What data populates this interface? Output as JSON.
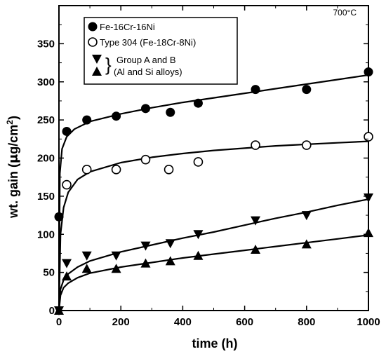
{
  "chart_data": {
    "type": "scatter",
    "annotation": "700°C",
    "xlabel": "time (h)",
    "ylabel_prefix": "wt. gain (",
    "ylabel_mu": "μ",
    "ylabel_unit": "g/cm",
    "ylabel_sup": "2",
    "ylabel_suffix": ")",
    "xlim": [
      0,
      1000
    ],
    "ylim": [
      0,
      400
    ],
    "xticks": [
      0,
      200,
      400,
      600,
      800,
      1000
    ],
    "yticks": [
      0,
      50,
      100,
      150,
      200,
      250,
      300,
      350
    ],
    "grid": false,
    "legend_position": "top-left",
    "legend_group_brace": "}",
    "series": [
      {
        "name": "Fe-16Cr-16Ni",
        "marker": "filled-circle",
        "x": [
          0,
          25,
          90,
          185,
          280,
          360,
          450,
          635,
          800,
          1000
        ],
        "y": [
          123,
          235,
          250,
          255,
          265,
          260,
          272,
          290,
          290,
          313
        ],
        "fit": [
          [
            0,
            0
          ],
          [
            3,
            180
          ],
          [
            10,
            212
          ],
          [
            25,
            228
          ],
          [
            50,
            238
          ],
          [
            100,
            248
          ],
          [
            200,
            258
          ],
          [
            300,
            266
          ],
          [
            400,
            273
          ],
          [
            500,
            279
          ],
          [
            600,
            285
          ],
          [
            700,
            291
          ],
          [
            800,
            297
          ],
          [
            900,
            303
          ],
          [
            1000,
            309
          ]
        ]
      },
      {
        "name": "Type 304 (Fe-18Cr-8Ni)",
        "marker": "open-circle",
        "x": [
          25,
          90,
          185,
          280,
          355,
          450,
          635,
          800,
          1000
        ],
        "y": [
          165,
          185,
          185,
          198,
          185,
          195,
          217,
          217,
          228
        ],
        "fit": [
          [
            0,
            0
          ],
          [
            5,
            100
          ],
          [
            15,
            135
          ],
          [
            30,
            155
          ],
          [
            60,
            172
          ],
          [
            100,
            182
          ],
          [
            200,
            194
          ],
          [
            300,
            201
          ],
          [
            400,
            206
          ],
          [
            500,
            210
          ],
          [
            600,
            213
          ],
          [
            700,
            216
          ],
          [
            800,
            218
          ],
          [
            900,
            220
          ],
          [
            1000,
            222
          ]
        ]
      },
      {
        "name": "Group A and B",
        "marker": "filled-triangle-down",
        "x": [
          0,
          25,
          90,
          185,
          280,
          360,
          450,
          635,
          800,
          1000
        ],
        "y": [
          0,
          62,
          72,
          72,
          85,
          88,
          100,
          118,
          125,
          148
        ],
        "fit": [
          [
            0,
            0
          ],
          [
            5,
            28
          ],
          [
            15,
            40
          ],
          [
            30,
            48
          ],
          [
            60,
            57
          ],
          [
            100,
            65
          ],
          [
            200,
            77
          ],
          [
            300,
            86
          ],
          [
            400,
            95
          ],
          [
            500,
            103
          ],
          [
            600,
            112
          ],
          [
            700,
            121
          ],
          [
            800,
            129
          ],
          [
            900,
            138
          ],
          [
            1000,
            146
          ]
        ]
      },
      {
        "name": "(Al and Si alloys)",
        "marker": "filled-triangle-up",
        "x": [
          0,
          25,
          90,
          185,
          280,
          360,
          450,
          635,
          800,
          1000
        ],
        "y": [
          0,
          45,
          55,
          55,
          62,
          65,
          72,
          80,
          87,
          102
        ],
        "fit": [
          [
            0,
            0
          ],
          [
            5,
            20
          ],
          [
            15,
            30
          ],
          [
            30,
            36
          ],
          [
            60,
            43
          ],
          [
            100,
            49
          ],
          [
            200,
            57
          ],
          [
            300,
            63
          ],
          [
            400,
            69
          ],
          [
            500,
            74
          ],
          [
            600,
            79
          ],
          [
            700,
            84
          ],
          [
            800,
            89
          ],
          [
            900,
            94
          ],
          [
            1000,
            99
          ]
        ]
      }
    ]
  }
}
